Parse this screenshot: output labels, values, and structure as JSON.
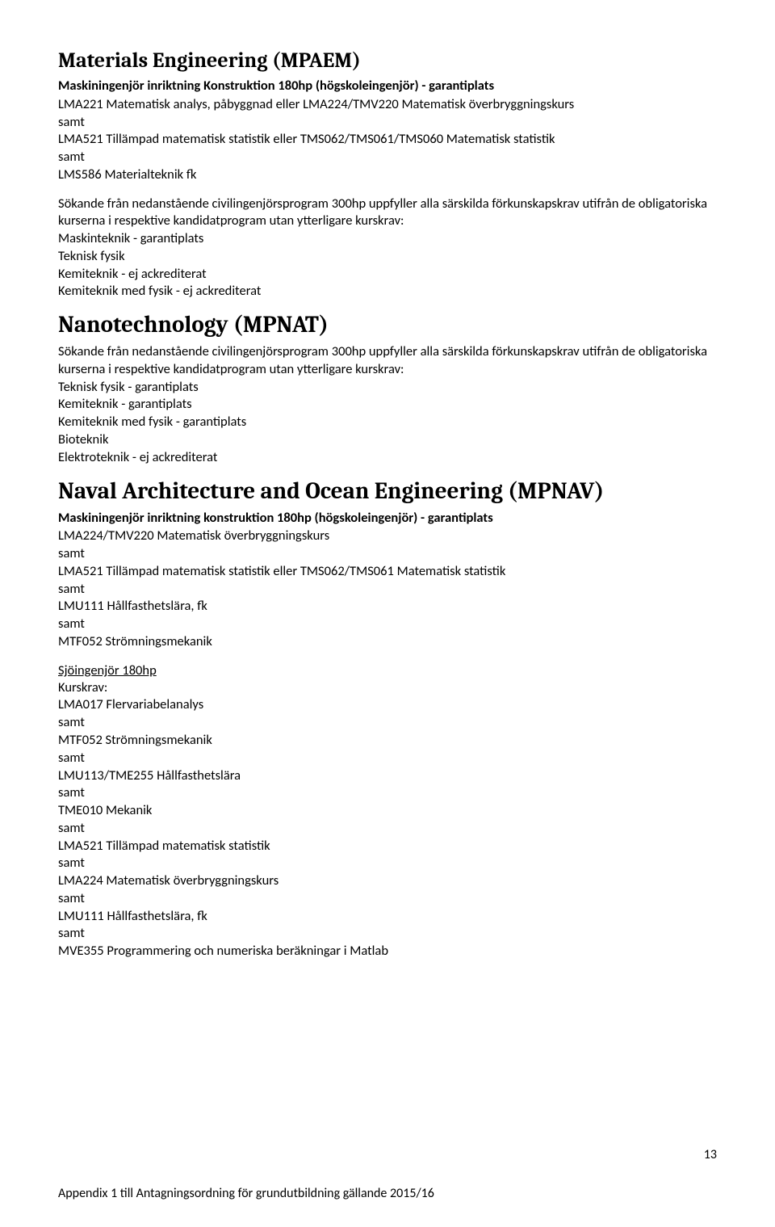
{
  "section1": {
    "title": "Materials Engineering (MPAEM)",
    "subhead": "Maskiningenjör inriktning Konstruktion 180hp (högskoleingenjör) - garantiplats",
    "lines": [
      "LMA221 Matematisk analys, påbyggnad eller LMA224/TMV220 Matematisk överbryggningskurs",
      "samt",
      "LMA521 Tillämpad matematisk statistik eller TMS062/TMS061/TMS060 Matematisk statistik",
      "samt",
      "LMS586 Materialteknik fk"
    ],
    "para1": "Sökande från nedanstående civilingenjörsprogram 300hp uppfyller alla särskilda förkunskapskrav utifrån de obligatoriska kurserna i respektive kandidatprogram utan ytterligare kurskrav:",
    "list1": [
      "Maskinteknik - garantiplats",
      "Teknisk fysik",
      "Kemiteknik - ej ackrediterat",
      "Kemiteknik med fysik - ej ackrediterat"
    ]
  },
  "section2": {
    "title": "Nanotechnology (MPNAT)",
    "para1": "Sökande från nedanstående civilingenjörsprogram 300hp uppfyller alla särskilda förkunskapskrav utifrån de obligatoriska kurserna i respektive kandidatprogram utan ytterligare kurskrav:",
    "list1": [
      "Teknisk fysik - garantiplats",
      "Kemiteknik - garantiplats",
      "Kemiteknik med fysik - garantiplats",
      "Bioteknik",
      "Elektroteknik - ej ackrediterat"
    ]
  },
  "section3": {
    "title": "Naval Architecture and Ocean Engineering (MPNAV)",
    "subhead": "Maskiningenjör inriktning konstruktion 180hp (högskoleingenjör) - garantiplats",
    "lines": [
      "LMA224/TMV220 Matematisk överbryggningskurs",
      "samt",
      "LMA521 Tillämpad matematisk statistik eller TMS062/TMS061 Matematisk statistik",
      "samt",
      "LMU111 Hållfasthetslära, fk",
      "samt",
      "MTF052 Strömningsmekanik"
    ],
    "subhead2": "Sjöingenjör 180hp",
    "kurskrav": "Kurskrav:",
    "lines2": [
      "LMA017 Flervariabelanalys",
      "samt",
      "MTF052 Strömningsmekanik",
      "samt",
      "LMU113/TME255 Hållfasthetslära",
      "samt",
      "TME010 Mekanik",
      "samt",
      "LMA521 Tillämpad matematisk statistik",
      "samt",
      "LMA224 Matematisk överbryggningskurs",
      "samt",
      "LMU111 Hållfasthetslära, fk",
      "samt",
      "MVE355 Programmering och numeriska beräkningar i Matlab"
    ]
  },
  "footer": "Appendix 1 till Antagningsordning för grundutbildning gällande 2015/16",
  "pagenum": "13"
}
